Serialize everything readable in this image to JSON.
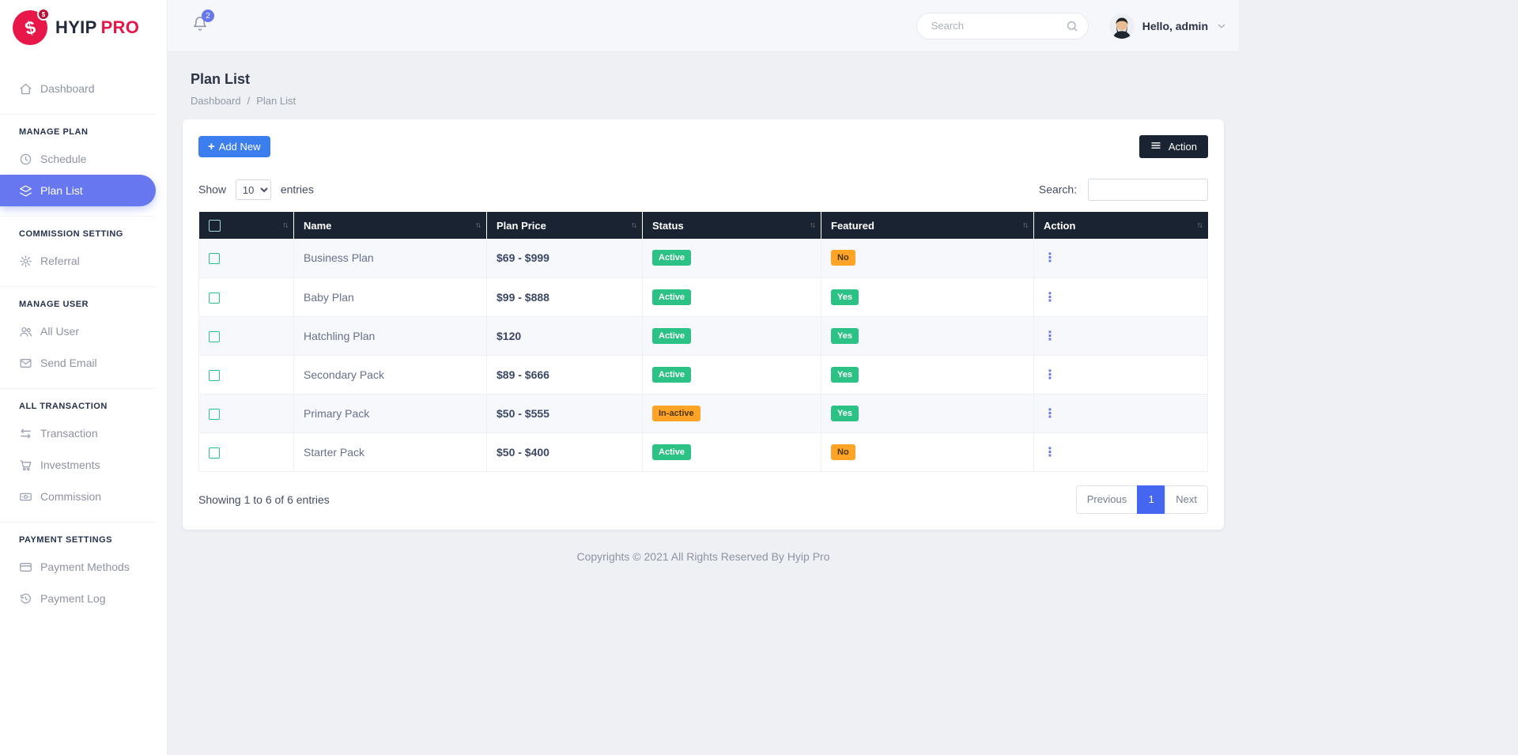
{
  "colors": {
    "accent_primary": "#6777ef",
    "button_blue": "#3d7eee",
    "dark_navy": "#1a2332",
    "badge_success": "#2cc185",
    "badge_warning": "#ffa426",
    "pagination_active": "#4466f1",
    "logo_red": "#e7174a"
  },
  "sidebar": {
    "logo": {
      "primary": "HYIP",
      "secondary": "PRO",
      "mark_glyph": "$",
      "dot_glyph": "$"
    },
    "sections": [
      {
        "items": [
          {
            "label": "Dashboard",
            "icon": "home-icon"
          }
        ]
      },
      {
        "header": "MANAGE PLAN",
        "items": [
          {
            "label": "Schedule",
            "icon": "clock-icon"
          },
          {
            "label": "Plan List",
            "icon": "layers-icon",
            "active": true
          }
        ]
      },
      {
        "header": "COMMISSION SETTING",
        "items": [
          {
            "label": "Referral",
            "icon": "cog-icon"
          }
        ]
      },
      {
        "header": "MANAGE USER",
        "items": [
          {
            "label": "All User",
            "icon": "users-icon"
          },
          {
            "label": "Send Email",
            "icon": "envelope-icon"
          }
        ]
      },
      {
        "header": "ALL TRANSACTION",
        "items": [
          {
            "label": "Transaction",
            "icon": "exchange-icon"
          },
          {
            "label": "Investments",
            "icon": "cart-icon"
          },
          {
            "label": "Commission",
            "icon": "banknote-icon"
          }
        ]
      },
      {
        "header": "PAYMENT SETTINGS",
        "items": [
          {
            "label": "Payment Methods",
            "icon": "credit-card-icon"
          },
          {
            "label": "Payment Log",
            "icon": "history-icon"
          }
        ]
      }
    ]
  },
  "topbar": {
    "notification_count": "2",
    "search_placeholder": "Search",
    "greeting": "Hello, admin"
  },
  "page": {
    "title": "Plan List",
    "breadcrumb": {
      "parent": "Dashboard",
      "separator": "/",
      "current": "Plan List"
    }
  },
  "card": {
    "toolbar": {
      "add_new": "Add New",
      "plus_glyph": "+",
      "action": "Action"
    },
    "controls": {
      "show_label": "Show",
      "page_length": "10",
      "entries_label": "entries",
      "search_label": "Search:"
    },
    "table": {
      "sort_glyph": "↑↓",
      "ellipsis_glyph": "⋮",
      "columns": [
        "Name",
        "Plan Price",
        "Status",
        "Featured",
        "Action"
      ],
      "rows": [
        {
          "name": "Business Plan",
          "price": "$69 - $999",
          "status": "Active",
          "status_type": "success",
          "featured": "No",
          "featured_type": "warning"
        },
        {
          "name": "Baby Plan",
          "price": "$99 - $888",
          "status": "Active",
          "status_type": "success",
          "featured": "Yes",
          "featured_type": "success"
        },
        {
          "name": "Hatchling Plan",
          "price": "$120",
          "status": "Active",
          "status_type": "success",
          "featured": "Yes",
          "featured_type": "success"
        },
        {
          "name": "Secondary Pack",
          "price": "$89 - $666",
          "status": "Active",
          "status_type": "success",
          "featured": "Yes",
          "featured_type": "success"
        },
        {
          "name": "Primary Pack",
          "price": "$50 - $555",
          "status": "In-active",
          "status_type": "warning",
          "featured": "Yes",
          "featured_type": "success"
        },
        {
          "name": "Starter Pack",
          "price": "$50 - $400",
          "status": "Active",
          "status_type": "success",
          "featured": "No",
          "featured_type": "warning"
        }
      ]
    },
    "summary": "Showing 1 to 6 of 6 entries",
    "pagination": {
      "previous": "Previous",
      "current_page": "1",
      "next": "Next"
    }
  },
  "footer": {
    "copyright": "Copyrights © 2021 All Rights Reserved By Hyip Pro"
  }
}
